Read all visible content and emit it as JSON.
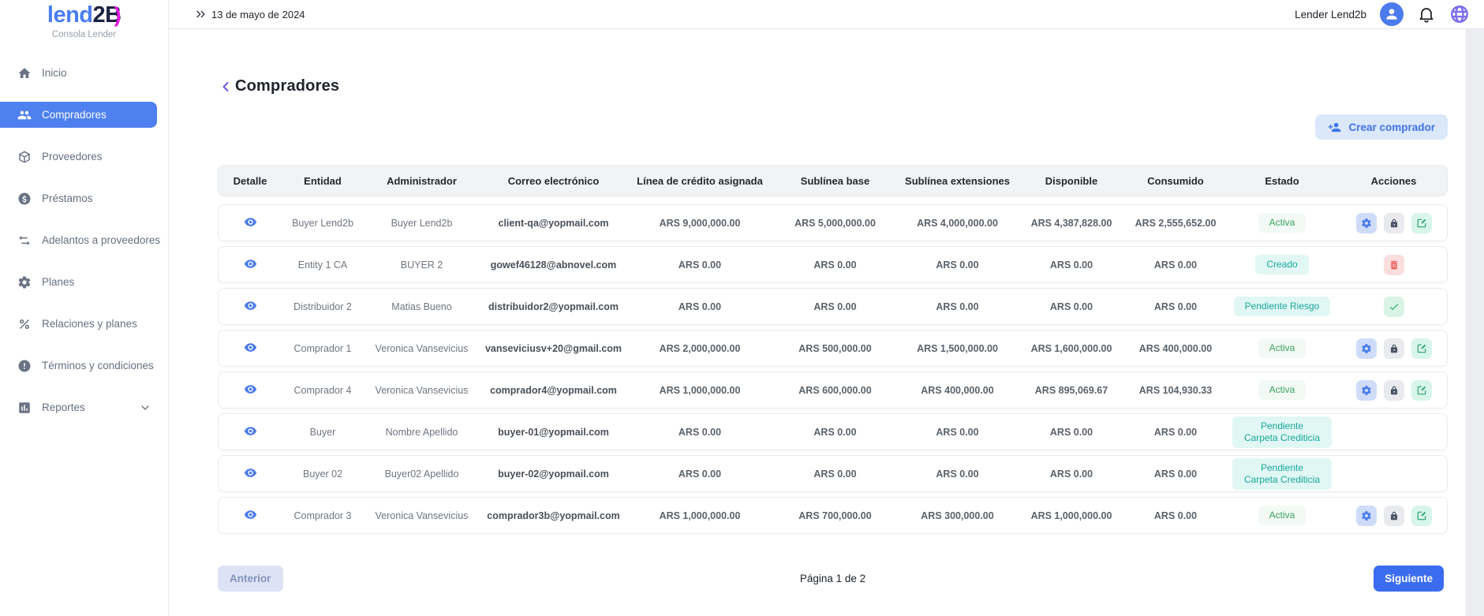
{
  "brand": {
    "name_primary": "lend",
    "name_accent": "2B",
    "accent_mark": ")",
    "subtitle": "Consola Lender"
  },
  "topbar": {
    "date": "13 de mayo de 2024",
    "user_name": "Lender Lend2b"
  },
  "sidebar": {
    "items": [
      {
        "id": "inicio",
        "label": "Inicio",
        "icon": "home",
        "active": false,
        "expandable": false
      },
      {
        "id": "compradores",
        "label": "Compradores",
        "icon": "users",
        "active": true,
        "expandable": false
      },
      {
        "id": "proveedores",
        "label": "Proveedores",
        "icon": "package",
        "active": false,
        "expandable": false
      },
      {
        "id": "prestamos",
        "label": "Préstamos",
        "icon": "coin",
        "active": false,
        "expandable": false
      },
      {
        "id": "adelantos-a-proveedores",
        "label": "Adelantos a proveedores",
        "icon": "swap",
        "active": false,
        "expandable": false
      },
      {
        "id": "planes",
        "label": "Planes",
        "icon": "gear",
        "active": false,
        "expandable": false
      },
      {
        "id": "relaciones-y-planes",
        "label": "Relaciones y planes",
        "icon": "percent",
        "active": false,
        "expandable": false
      },
      {
        "id": "terminos-y-condiciones",
        "label": "Términos y condiciones",
        "icon": "alert",
        "active": false,
        "expandable": false
      },
      {
        "id": "reportes",
        "label": "Reportes",
        "icon": "report",
        "active": false,
        "expandable": true
      }
    ]
  },
  "page": {
    "title": "Compradores",
    "create_button_label": "Crear comprador"
  },
  "table": {
    "columns": [
      "Detalle",
      "Entidad",
      "Administrador",
      "Correo electrónico",
      "Línea de crédito asignada",
      "Sublínea base",
      "Sublínea extensiones",
      "Disponible",
      "Consumido",
      "Estado",
      "Acciones"
    ],
    "rows": [
      {
        "entidad": "Buyer Lend2b",
        "administrador": "Buyer Lend2b",
        "correo": "client-qa@yopmail.com",
        "linea_credito": "ARS 9,000,000.00",
        "sublinea_base": "ARS 5,000,000.00",
        "sublinea_ext": "ARS 4,000,000.00",
        "disponible": "ARS 4,387,828.00",
        "consumido": "ARS 2,555,652.00",
        "estado": "Activa",
        "estado_style": "green",
        "acciones": [
          "gear",
          "lock",
          "edit"
        ]
      },
      {
        "entidad": "Entity 1 CA",
        "administrador": "BUYER 2",
        "correo": "gowef46128@abnovel.com",
        "linea_credito": "ARS 0.00",
        "sublinea_base": "ARS 0.00",
        "sublinea_ext": "ARS 0.00",
        "disponible": "ARS 0.00",
        "consumido": "ARS 0.00",
        "estado": "Creado",
        "estado_style": "teal",
        "acciones": [
          "trash"
        ]
      },
      {
        "entidad": "Distribuidor 2",
        "administrador": "Matias Bueno",
        "correo": "distribuidor2@yopmail.com",
        "linea_credito": "ARS 0.00",
        "sublinea_base": "ARS 0.00",
        "sublinea_ext": "ARS 0.00",
        "disponible": "ARS 0.00",
        "consumido": "ARS 0.00",
        "estado": "Pendiente Riesgo",
        "estado_style": "teal",
        "acciones": [
          "check"
        ]
      },
      {
        "entidad": "Comprador 1",
        "administrador": "Veronica Vansevicius",
        "correo": "vanseviciusv+20@gmail.com",
        "linea_credito": "ARS 2,000,000.00",
        "sublinea_base": "ARS 500,000.00",
        "sublinea_ext": "ARS 1,500,000.00",
        "disponible": "ARS 1,600,000.00",
        "consumido": "ARS 400,000.00",
        "estado": "Activa",
        "estado_style": "green",
        "acciones": [
          "gear",
          "lock",
          "edit"
        ]
      },
      {
        "entidad": "Comprador 4",
        "administrador": "Veronica Vansevicius",
        "correo": "comprador4@yopmail.com",
        "linea_credito": "ARS 1,000,000.00",
        "sublinea_base": "ARS 600,000.00",
        "sublinea_ext": "ARS 400,000.00",
        "disponible": "ARS 895,069.67",
        "consumido": "ARS 104,930.33",
        "estado": "Activa",
        "estado_style": "green",
        "acciones": [
          "gear",
          "lock",
          "edit"
        ]
      },
      {
        "entidad": "Buyer",
        "administrador": "Nombre Apellido",
        "correo": "buyer-01@yopmail.com",
        "linea_credito": "ARS 0.00",
        "sublinea_base": "ARS 0.00",
        "sublinea_ext": "ARS 0.00",
        "disponible": "ARS 0.00",
        "consumido": "ARS 0.00",
        "estado": "Pendiente Carpeta Crediticia",
        "estado_style": "teal",
        "acciones": []
      },
      {
        "entidad": "Buyer 02",
        "administrador": "Buyer02 Apellido",
        "correo": "buyer-02@yopmail.com",
        "linea_credito": "ARS 0.00",
        "sublinea_base": "ARS 0.00",
        "sublinea_ext": "ARS 0.00",
        "disponible": "ARS 0.00",
        "consumido": "ARS 0.00",
        "estado": "Pendiente Carpeta Crediticia",
        "estado_style": "teal",
        "acciones": []
      },
      {
        "entidad": "Comprador 3",
        "administrador": "Veronica Vansevicius",
        "correo": "comprador3b@yopmail.com",
        "linea_credito": "ARS 1,000,000.00",
        "sublinea_base": "ARS 700,000.00",
        "sublinea_ext": "ARS 300,000.00",
        "disponible": "ARS 1,000,000.00",
        "consumido": "ARS 0.00",
        "estado": "Activa",
        "estado_style": "green",
        "acciones": [
          "gear",
          "lock",
          "edit"
        ]
      }
    ]
  },
  "pagination": {
    "prev_label": "Anterior",
    "page_info": "Página 1 de 2",
    "next_label": "Siguiente"
  },
  "colors": {
    "primary_blue": "#4b7bec",
    "active_nav": "#4e80f0",
    "accent_magenta": "#e515dd",
    "badge_green_text": "#3aa35f",
    "badge_teal_text": "#17a79a",
    "next_button": "#3b6cf0",
    "language_icon": "#7b6cf0"
  }
}
